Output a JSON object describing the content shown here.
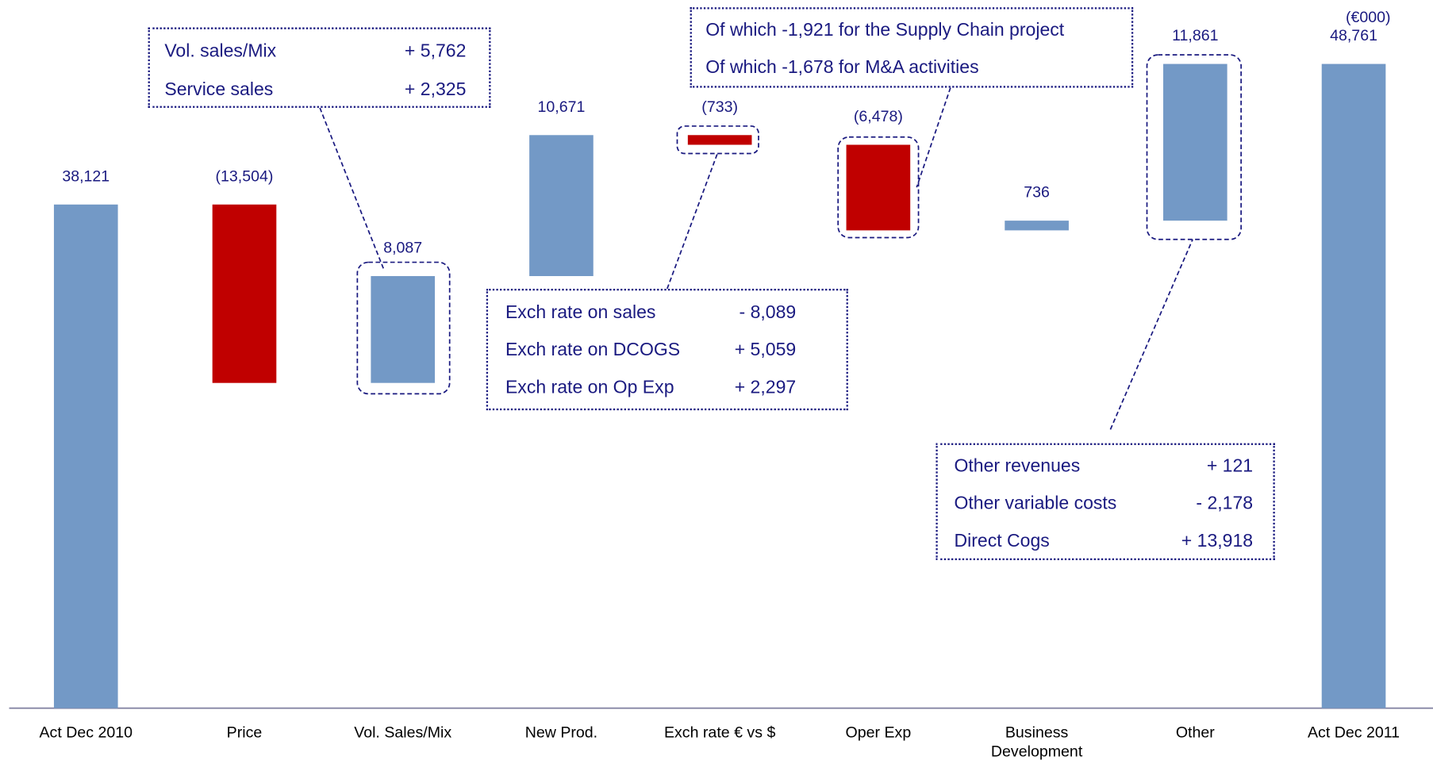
{
  "chart_data": {
    "type": "waterfall",
    "unit_label": "(€000)",
    "categories": [
      "Act Dec 2010",
      "Price",
      "Vol. Sales/Mix",
      "New Prod.",
      "Exch rate € vs $",
      "Oper Exp",
      "Business Development",
      "Other",
      "Act Dec 2011"
    ],
    "values": [
      38121,
      -13504,
      8087,
      10671,
      -733,
      -6478,
      736,
      11861,
      48761
    ],
    "value_labels": [
      "38,121",
      "(13,504)",
      "8,087",
      "10,671",
      "(733)",
      "(6,478)",
      "736",
      "11,861",
      "48,761"
    ],
    "color": "#7399c6",
    "negative_color": "#c00000",
    "ylim": [
      0,
      53600
    ],
    "annotations": [
      {
        "rows": [
          [
            "Vol. sales/Mix",
            "+ 5,762"
          ],
          [
            "Service sales",
            "+ 2,325"
          ]
        ]
      },
      {
        "rows": [
          [
            "Exch rate on sales",
            "-  8,089"
          ],
          [
            "Exch rate on DCOGS",
            "+ 5,059"
          ],
          [
            "Exch rate on Op Exp",
            "+ 2,297"
          ]
        ]
      },
      {
        "rows": [
          [
            "Of which -1,921 for the Supply Chain project"
          ],
          [
            "Of which -1,678 for M&A activities"
          ]
        ]
      },
      {
        "rows": [
          [
            "Other revenues",
            "+ 121"
          ],
          [
            "Other variable costs",
            "- 2,178"
          ],
          [
            "Direct Cogs",
            "+ 13,918"
          ]
        ]
      }
    ]
  }
}
